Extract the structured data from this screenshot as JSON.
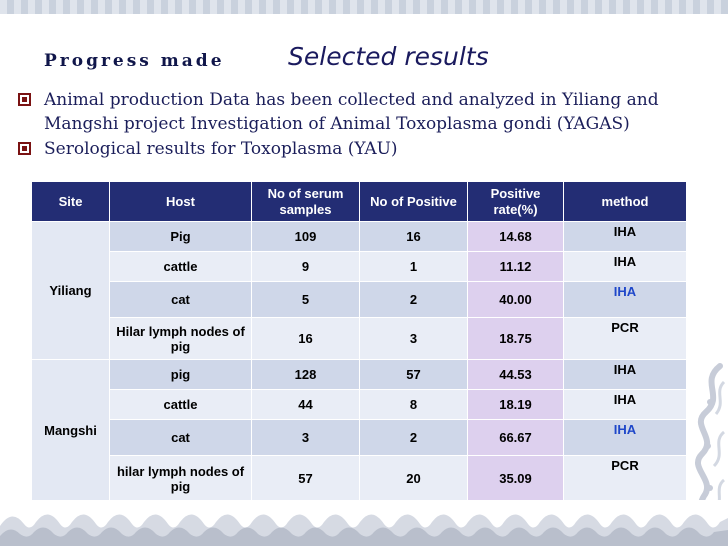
{
  "slide": {
    "title_left": "Progress made",
    "title_right": "Selected results",
    "bullets": [
      "Animal production Data has been collected and analyzed in Yiliang and Mangshi project Investigation of Animal Toxoplasma gondi (YAGAS)",
      "Serological results for Toxoplasma (YAU)"
    ]
  },
  "table": {
    "headers": [
      "Site",
      "Host",
      "No of serum samples",
      "No of Positive",
      "Positive rate(%)",
      "method"
    ],
    "groups": [
      {
        "site": "Yiliang",
        "rows": [
          {
            "host": "Pig",
            "samples": "109",
            "positive": "16",
            "rate": "14.68",
            "method": "IHA"
          },
          {
            "host": "cattle",
            "samples": "9",
            "positive": "1",
            "rate": "11.12",
            "method": "IHA"
          },
          {
            "host": "cat",
            "samples": "5",
            "positive": "2",
            "rate": "40.00",
            "method": "IHA"
          },
          {
            "host": "Hilar lymph nodes of pig",
            "samples": "16",
            "positive": "3",
            "rate": "18.75",
            "method": "PCR"
          }
        ]
      },
      {
        "site": "Mangshi",
        "rows": [
          {
            "host": "pig",
            "samples": "128",
            "positive": "57",
            "rate": "44.53",
            "method": "IHA"
          },
          {
            "host": "cattle",
            "samples": "44",
            "positive": "8",
            "rate": "18.19",
            "method": "IHA"
          },
          {
            "host": "cat",
            "samples": "3",
            "positive": "2",
            "rate": "66.67",
            "method": "IHA"
          },
          {
            "host": "hilar lymph nodes of pig",
            "samples": "57",
            "positive": "20",
            "rate": "35.09",
            "method": "PCR"
          }
        ]
      }
    ]
  },
  "colors": {
    "header_bg": "#232d74",
    "row_dark": "#cfd7e9",
    "row_light": "#e9edf6",
    "rate_column": "#ddd0ee",
    "cat_row_text": "#1f47c9",
    "bullet_box": "#7a1212"
  }
}
